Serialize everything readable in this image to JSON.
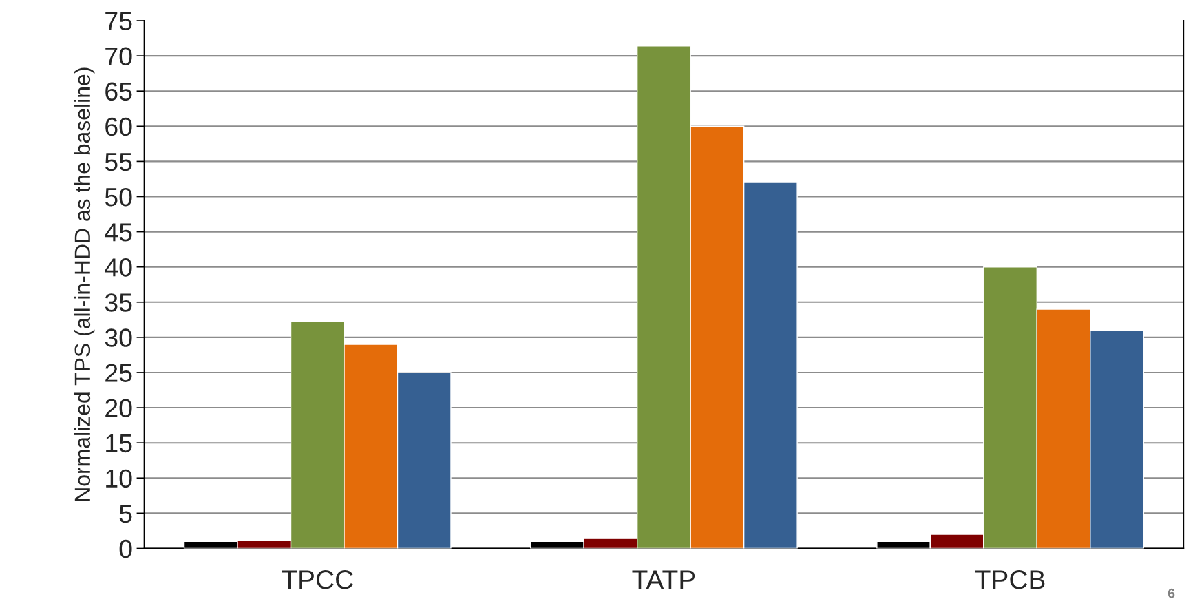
{
  "chart_data": {
    "type": "bar",
    "ylabel": "Normalized TPS (all-in-HDD as the baseline)",
    "categories": [
      "TPCC",
      "TATP",
      "TPCB"
    ],
    "series": [
      {
        "color": "#000000",
        "values": [
          1,
          1,
          1
        ]
      },
      {
        "color": "#7f0000",
        "values": [
          1.2,
          1.4,
          2
        ]
      },
      {
        "color": "#78933c",
        "values": [
          32.3,
          71.4,
          40
        ]
      },
      {
        "color": "#e46c0a",
        "values": [
          29,
          60,
          34
        ]
      },
      {
        "color": "#366092",
        "values": [
          25,
          52,
          31
        ]
      }
    ],
    "ylim": [
      0,
      75
    ],
    "yticks": [
      0,
      5,
      10,
      15,
      20,
      25,
      30,
      35,
      40,
      45,
      50,
      55,
      60,
      65,
      70,
      75
    ],
    "grid": "y",
    "legend": false,
    "annotations": [
      "6"
    ]
  }
}
